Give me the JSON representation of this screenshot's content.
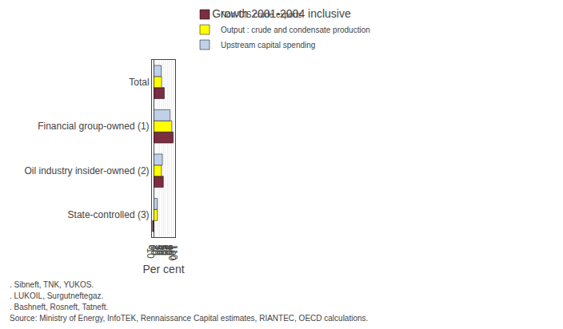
{
  "chart_data": {
    "type": "bar",
    "orientation": "horizontal",
    "title": "Growth 2001-2004 inclusive",
    "xlabel": "Per cent",
    "categories": [
      "State-controlled (3)",
      "Oil industry insider-owned (2)",
      "Financial group-owned (1)",
      "Total"
    ],
    "series": [
      {
        "name": "Non-CIS crude exports",
        "color": "#7B2D42",
        "values": [
          -7,
          49,
          100,
          54
        ]
      },
      {
        "name": "Output : crude and condensate production",
        "color": "#FFFF00",
        "values": [
          18,
          39,
          93,
          40
        ]
      },
      {
        "name": "Upstream capital spending",
        "color": "#BFD0E8",
        "values": [
          18,
          44,
          84,
          38
        ]
      }
    ],
    "xlim": [
      -10,
      110
    ],
    "xticks": [
      -10,
      0,
      10,
      20,
      30,
      40,
      50,
      60,
      70,
      80,
      90,
      100,
      110
    ],
    "grid": true,
    "legend": "top",
    "annotations": [
      ". Sibneft, TNK, YUKOS.",
      ". LUKOIL, Surgutneftegaz.",
      ". Bashneft, Rosneft, Tatneft.",
      "Source: Ministry of Energy, InfoTEK, Rennaissance Capital estimates, RIANTEC, OECD calculations."
    ]
  }
}
